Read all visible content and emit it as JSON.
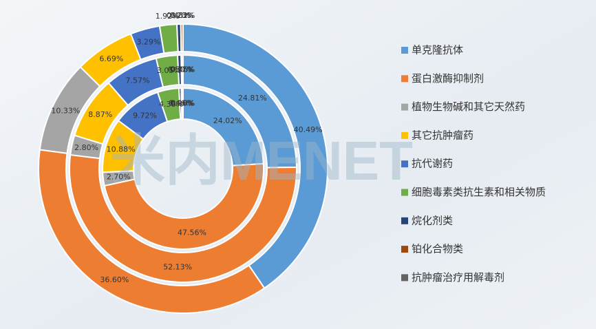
{
  "chart_data": {
    "type": "donut",
    "watermark": "米内MENET",
    "categories": [
      "单克隆抗体",
      "蛋白激酶抑制剂",
      "植物生物碱和其它天然药",
      "其它抗肿瘤药",
      "抗代谢药",
      "细胞毒素类抗生素和相关物质",
      "烷化剂类",
      "铂化合物类",
      "抗肿瘤治疗用解毒剂"
    ],
    "colors": [
      "#5b9bd5",
      "#ed7d31",
      "#a5a5a5",
      "#ffc000",
      "#4472c4",
      "#70ad47",
      "#264478",
      "#9e480e",
      "#636363"
    ],
    "series": [
      {
        "values": [
          24.02,
          47.56,
          2.7,
          10.88,
          9.72,
          4.3,
          0.46,
          0.26,
          0.1
        ],
        "value_labels": [
          "24.02%",
          "47.56%",
          "2.70%",
          "10.88%",
          "9.72%",
          "4.30%",
          "0.46%",
          "0.26%",
          "0.10%"
        ]
      },
      {
        "values": [
          24.81,
          52.13,
          2.8,
          8.87,
          7.57,
          3.05,
          0.5,
          0.21,
          0.06
        ],
        "value_labels": [
          "24.81%",
          "52.13%",
          "2.80%",
          "8.87%",
          "7.57%",
          "3.05%",
          "0.50%",
          "0.21%",
          "0.06%"
        ]
      },
      {
        "values": [
          40.49,
          36.6,
          10.33,
          6.69,
          3.29,
          1.92,
          0.43,
          0.23,
          0.02
        ],
        "value_labels": [
          "40.49%",
          "36.60%",
          "10.33%",
          "6.69%",
          "3.29%",
          "1.92%",
          "0.43%",
          "0.23%",
          "0.02%"
        ]
      }
    ]
  }
}
